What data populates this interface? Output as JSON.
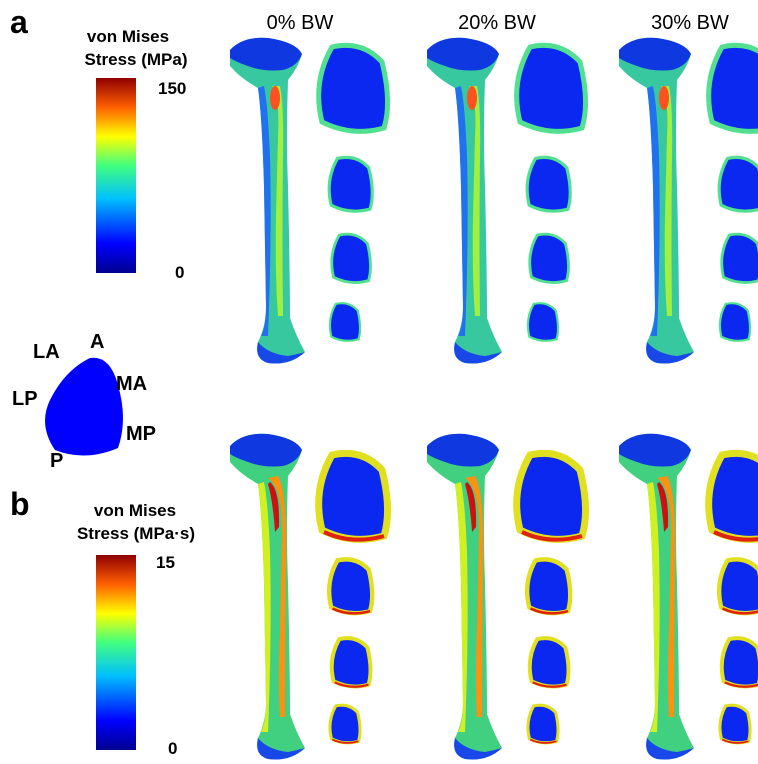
{
  "panel_a": {
    "label": "a",
    "colorbar": {
      "title_line1": "von Mises",
      "title_line2": "Stress (MPa)",
      "max": "150",
      "min": "0"
    },
    "columns": [
      "0% BW",
      "20% BW",
      "30% BW"
    ]
  },
  "orientation": {
    "labels": [
      "LA",
      "A",
      "MA",
      "LP",
      "MP",
      "P"
    ]
  },
  "panel_b": {
    "label": "b",
    "colorbar": {
      "title_line1": "von Mises",
      "title_line2": "Stress (MPa·s)",
      "max": "15",
      "min": "0"
    }
  }
}
